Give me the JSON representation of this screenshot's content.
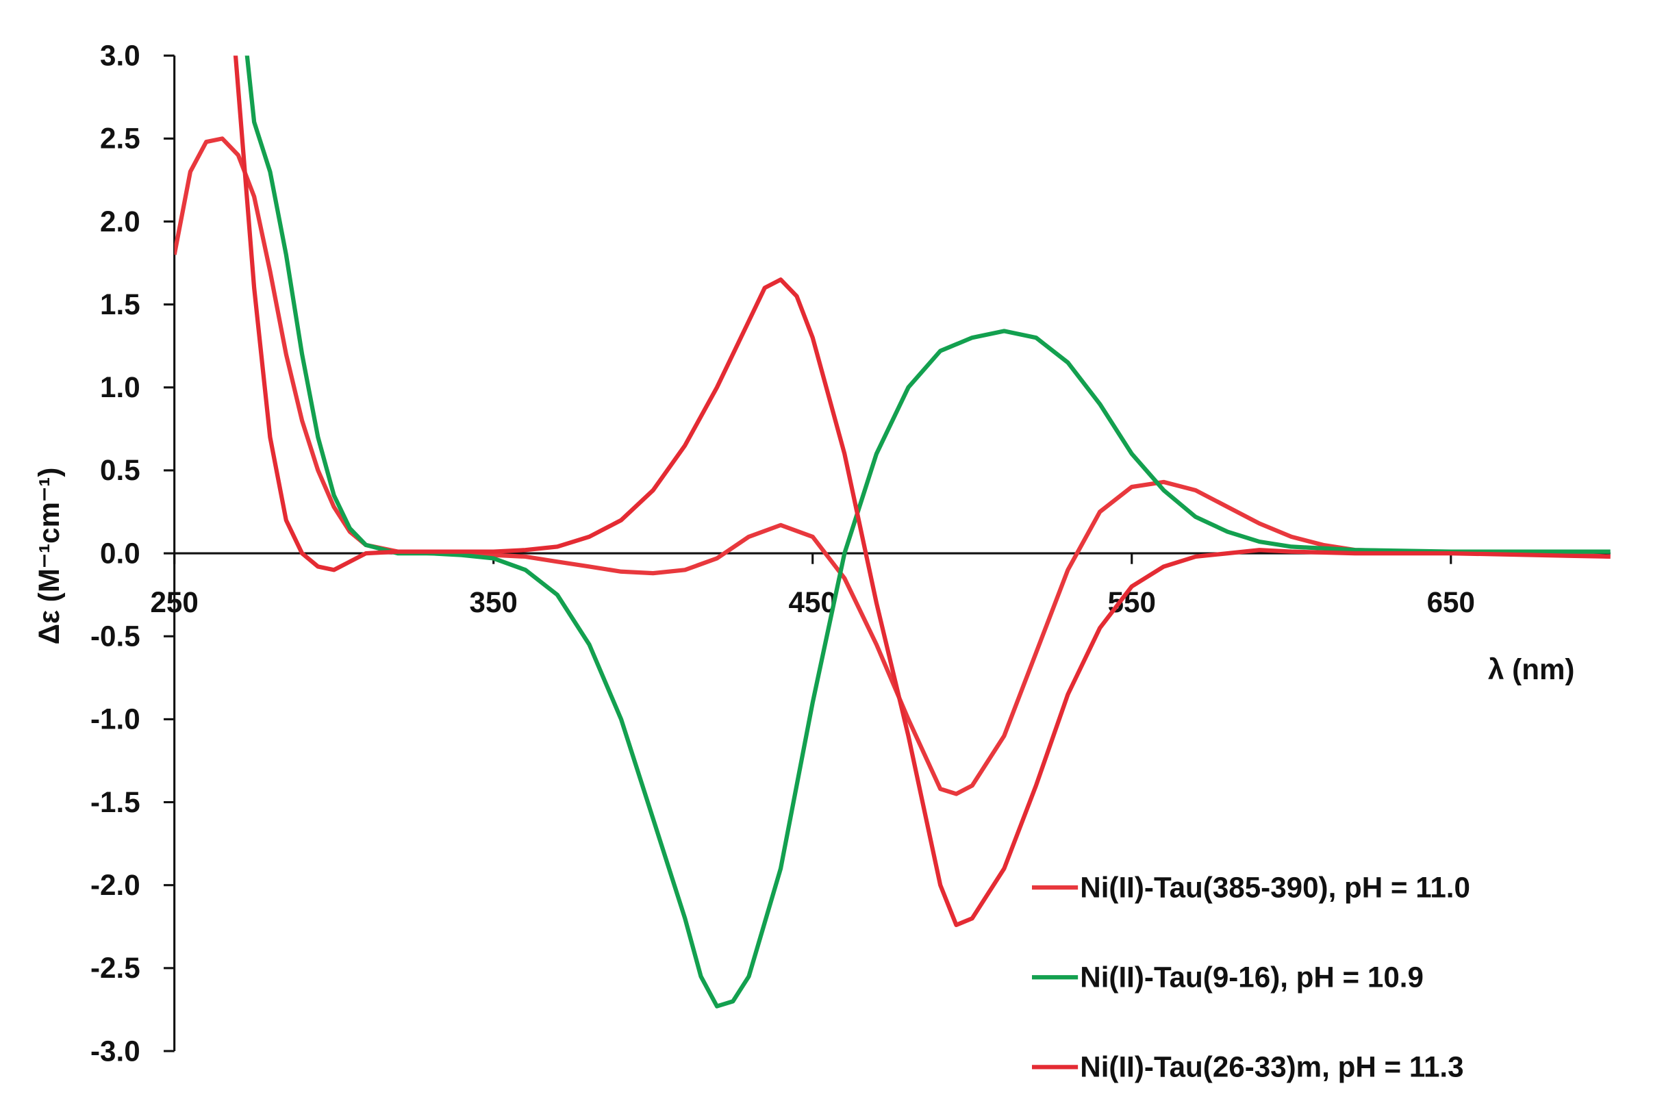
{
  "chart_data": {
    "type": "line",
    "y_label": "Δε (M⁻¹cm⁻¹)",
    "x_label": "λ (nm)",
    "xlim": [
      250,
      700
    ],
    "xticks": [
      250,
      350,
      450,
      550,
      650
    ],
    "ylim": [
      -3,
      3
    ],
    "yticks": [
      {
        "value": 3,
        "label": "3.0"
      },
      2.5,
      {
        "value": 2,
        "label": "2.0"
      },
      1.5,
      {
        "value": 1,
        "label": "1.0"
      },
      0.5,
      {
        "value": 0,
        "label": "0.0"
      },
      -0.5,
      {
        "value": -1,
        "label": "-1.0"
      },
      -1.5,
      {
        "value": -2,
        "label": "-2.0"
      },
      -2.5,
      {
        "value": -3,
        "label": "-3.0"
      }
    ],
    "legend": "bottom-right",
    "series": [
      {
        "name": "Ni(II)-Tau(385-390), pH = 11.0",
        "color": "#e8383d",
        "x": [
          250,
          255,
          260,
          265,
          270,
          275,
          280,
          285,
          290,
          295,
          300,
          305,
          310,
          320,
          330,
          340,
          350,
          360,
          370,
          380,
          390,
          400,
          410,
          420,
          430,
          440,
          450,
          460,
          470,
          480,
          490,
          495,
          500,
          510,
          520,
          530,
          540,
          550,
          560,
          570,
          580,
          590,
          600,
          610,
          620,
          640,
          660,
          680,
          700
        ],
        "values": [
          1.8,
          2.3,
          2.48,
          2.5,
          2.4,
          2.15,
          1.7,
          1.2,
          0.8,
          0.5,
          0.28,
          0.13,
          0.05,
          0.01,
          0,
          0,
          -0.01,
          -0.02,
          -0.05,
          -0.08,
          -0.11,
          -0.12,
          -0.1,
          -0.03,
          0.1,
          0.17,
          0.1,
          -0.15,
          -0.55,
          -1.0,
          -1.42,
          -1.45,
          -1.4,
          -1.1,
          -0.6,
          -0.1,
          0.25,
          0.4,
          0.43,
          0.38,
          0.28,
          0.18,
          0.1,
          0.05,
          0.02,
          0.01,
          0,
          0,
          -0.02
        ]
      },
      {
        "name": "Ni(II)-Tau(9-16), pH = 10.9",
        "color": "#13a04f",
        "x": [
          270,
          275,
          280,
          285,
          290,
          295,
          300,
          305,
          310,
          320,
          330,
          340,
          350,
          360,
          370,
          380,
          390,
          400,
          410,
          415,
          420,
          425,
          430,
          440,
          450,
          460,
          470,
          480,
          490,
          500,
          510,
          520,
          530,
          540,
          550,
          560,
          570,
          580,
          590,
          600,
          620,
          650,
          700
        ],
        "values": [
          3.5,
          2.6,
          2.3,
          1.8,
          1.2,
          0.7,
          0.35,
          0.15,
          0.05,
          0,
          0,
          -0.01,
          -0.03,
          -0.1,
          -0.25,
          -0.55,
          -1.0,
          -1.6,
          -2.2,
          -2.55,
          -2.73,
          -2.7,
          -2.55,
          -1.9,
          -0.9,
          0,
          0.6,
          1.0,
          1.22,
          1.3,
          1.34,
          1.3,
          1.15,
          0.9,
          0.6,
          0.38,
          0.22,
          0.13,
          0.07,
          0.04,
          0.02,
          0.01,
          0.01
        ]
      },
      {
        "name": "Ni(II)-Tau(26-33)m, pH = 11.3",
        "color": "#e42b33",
        "x": [
          265,
          270,
          275,
          280,
          285,
          290,
          295,
          300,
          305,
          310,
          320,
          330,
          340,
          350,
          360,
          370,
          380,
          390,
          400,
          410,
          420,
          430,
          435,
          440,
          445,
          450,
          460,
          470,
          480,
          490,
          495,
          500,
          510,
          520,
          530,
          540,
          550,
          560,
          570,
          580,
          590,
          600,
          620,
          650,
          700
        ],
        "values": [
          4.0,
          2.8,
          1.6,
          0.7,
          0.2,
          0,
          -0.08,
          -0.1,
          -0.05,
          0,
          0.01,
          0.01,
          0.01,
          0.01,
          0.02,
          0.04,
          0.1,
          0.2,
          0.38,
          0.65,
          1.0,
          1.4,
          1.6,
          1.65,
          1.55,
          1.3,
          0.6,
          -0.3,
          -1.1,
          -2.0,
          -2.24,
          -2.2,
          -1.9,
          -1.4,
          -0.85,
          -0.45,
          -0.2,
          -0.08,
          -0.02,
          0,
          0.02,
          0.01,
          0,
          0,
          -0.02
        ]
      }
    ]
  }
}
